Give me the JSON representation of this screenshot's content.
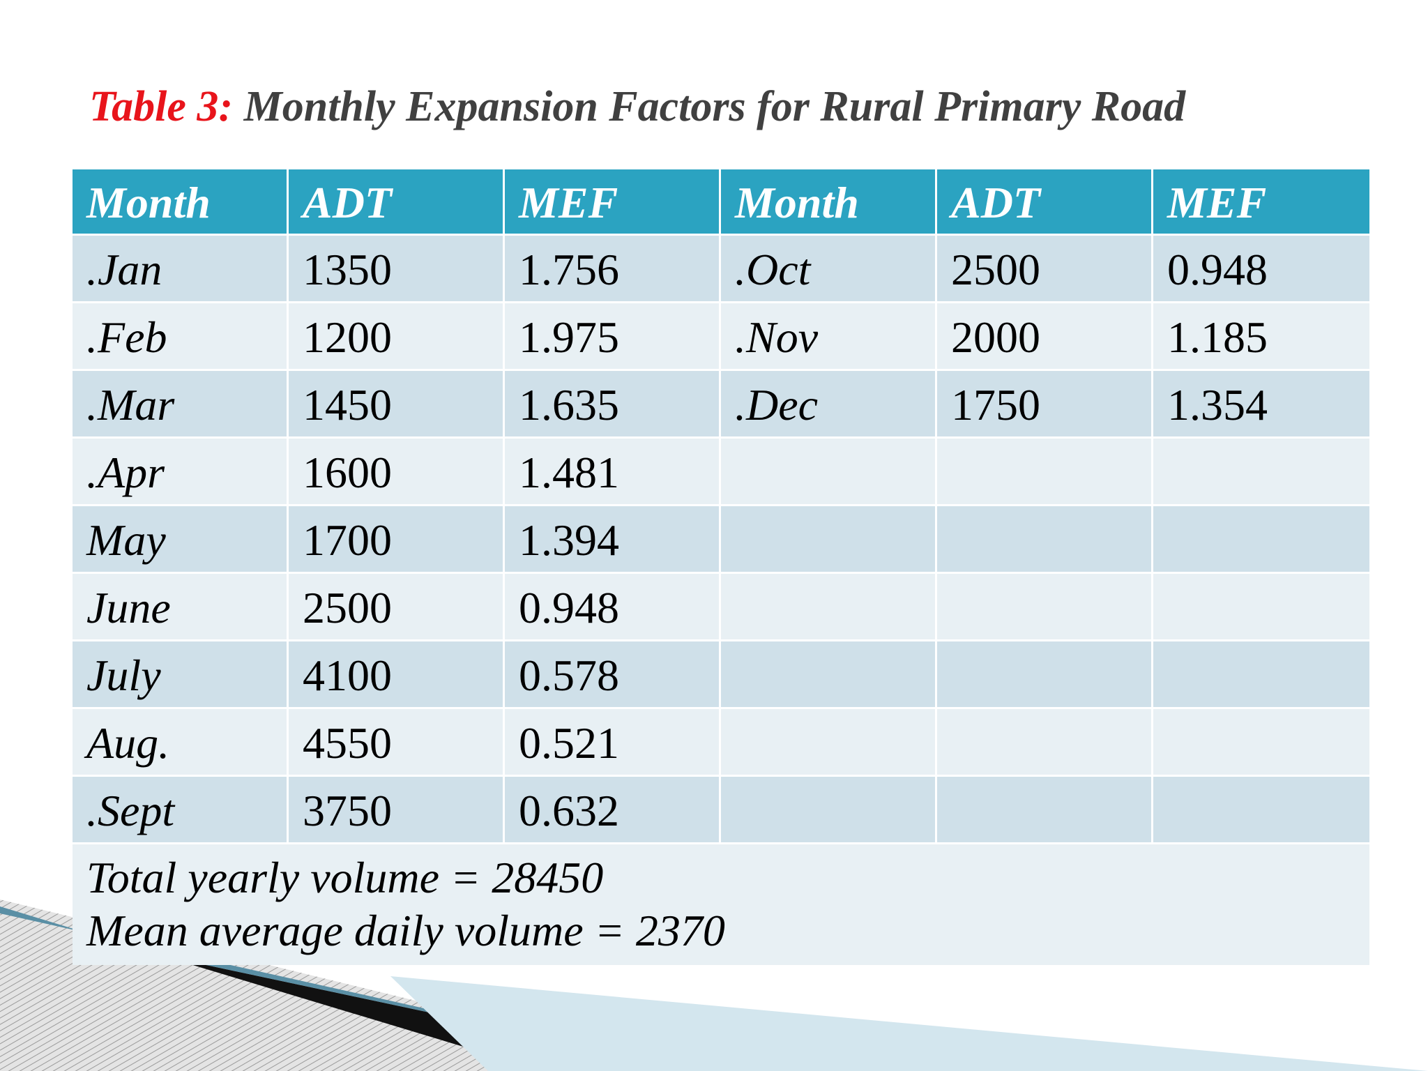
{
  "header": {
    "label": "Table 3:",
    "title": "Monthly Expansion Factors for Rural Primary Road"
  },
  "table": {
    "columns": [
      "Month",
      "ADT",
      "MEF",
      "Month",
      "ADT",
      "MEF"
    ],
    "rows": [
      [
        ".Jan",
        "1350",
        "1.756",
        ".Oct",
        "2500",
        "0.948"
      ],
      [
        ".Feb",
        "1200",
        "1.975",
        ".Nov",
        "2000",
        "1.185"
      ],
      [
        ".Mar",
        "1450",
        "1.635",
        ".Dec",
        "1750",
        "1.354"
      ],
      [
        ".Apr",
        "1600",
        "1.481"
      ],
      [
        "May",
        "1700",
        "1.394"
      ],
      [
        "June",
        "2500",
        "0.948"
      ],
      [
        "July",
        "4100",
        "0.578"
      ],
      [
        "Aug.",
        "4550",
        "0.521"
      ],
      [
        ".Sept",
        "3750",
        "0.632"
      ]
    ],
    "footer": [
      "Total yearly volume = 28450",
      "Mean average daily volume = 2370"
    ]
  }
}
